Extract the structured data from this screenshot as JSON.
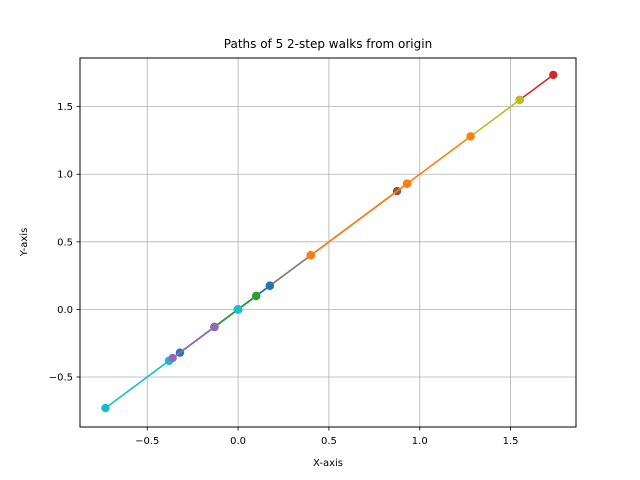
{
  "chart_data": {
    "type": "line",
    "title": "Paths of 5 2-step walks from origin",
    "xlabel": "X-axis",
    "ylabel": "Y-axis",
    "xlim": [
      -0.87,
      1.86
    ],
    "ylim": [
      -0.87,
      1.86
    ],
    "grid": true,
    "xticks": [
      -0.5,
      0.0,
      0.5,
      1.0,
      1.5
    ],
    "yticks": [
      -0.5,
      0.0,
      0.5,
      1.0,
      1.5
    ],
    "xtick_labels": [
      "−0.5",
      "0.0",
      "0.5",
      "1.0",
      "1.5"
    ],
    "ytick_labels": [
      "−0.5",
      "0.0",
      "0.5",
      "1.0",
      "1.5"
    ],
    "series": [
      {
        "color": "#1f77b4",
        "x": [
          0,
          0.175
        ],
        "y": [
          0,
          0.175
        ]
      },
      {
        "color": "#ff7f0e",
        "x": [
          0,
          0.4
        ],
        "y": [
          0,
          0.4
        ]
      },
      {
        "color": "#2ca02c",
        "x": [
          0,
          0.1
        ],
        "y": [
          0,
          0.1
        ]
      },
      {
        "color": "#d62728",
        "x": [
          1.55,
          1.735
        ],
        "y": [
          1.55,
          1.735
        ]
      },
      {
        "color": "#9467bd",
        "x": [
          0,
          -0.13
        ],
        "y": [
          0,
          -0.13
        ]
      },
      {
        "color": "#8c564b",
        "x": [
          0.4,
          0.875
        ],
        "y": [
          0.4,
          0.875
        ]
      },
      {
        "color": "#e377c2",
        "x": [
          -0.13,
          -0.38
        ],
        "y": [
          -0.13,
          -0.38
        ]
      },
      {
        "color": "#7f7f7f",
        "x": [
          -0.13,
          0.4
        ],
        "y": [
          -0.13,
          0.4
        ]
      },
      {
        "color": "#bcbd22",
        "x": [
          1.28,
          1.55
        ],
        "y": [
          1.28,
          1.55
        ]
      },
      {
        "color": "#17becf",
        "x": [
          -0.38,
          -0.73
        ],
        "y": [
          -0.38,
          -0.73
        ]
      },
      {
        "color": "#1f77b4",
        "x": [
          0.175,
          -0.32
        ],
        "y": [
          0.175,
          -0.32
        ]
      },
      {
        "color": "#ff7f0e",
        "x": [
          0.4,
          1.28
        ],
        "y": [
          0.4,
          1.28
        ]
      },
      {
        "color": "#2ca02c",
        "x": [
          0.1,
          -0.13
        ],
        "y": [
          0.1,
          -0.13
        ]
      },
      {
        "color": "#d62728",
        "x": [
          0,
          0
        ],
        "y": [
          0,
          0
        ]
      },
      {
        "color": "#9467bd",
        "x": [
          -0.13,
          -0.36
        ],
        "y": [
          -0.13,
          -0.36
        ]
      },
      {
        "color": "#8c564b",
        "x": [
          0,
          0
        ],
        "y": [
          0,
          0
        ]
      },
      {
        "color": "#e377c2",
        "x": [
          0,
          0
        ],
        "y": [
          0,
          0
        ]
      },
      {
        "color": "#7f7f7f",
        "x": [
          0,
          0
        ],
        "y": [
          0,
          0
        ]
      },
      {
        "color": "#bcbd22",
        "x": [
          0.93,
          0.93
        ],
        "y": [
          0.93,
          0.93
        ]
      },
      {
        "color": "#17becf",
        "x": [
          0,
          0
        ],
        "y": [
          0,
          0
        ]
      },
      {
        "color": "#ff7f0e",
        "x": [
          0.93,
          0.93
        ],
        "y": [
          0.93,
          0.93
        ]
      }
    ]
  }
}
